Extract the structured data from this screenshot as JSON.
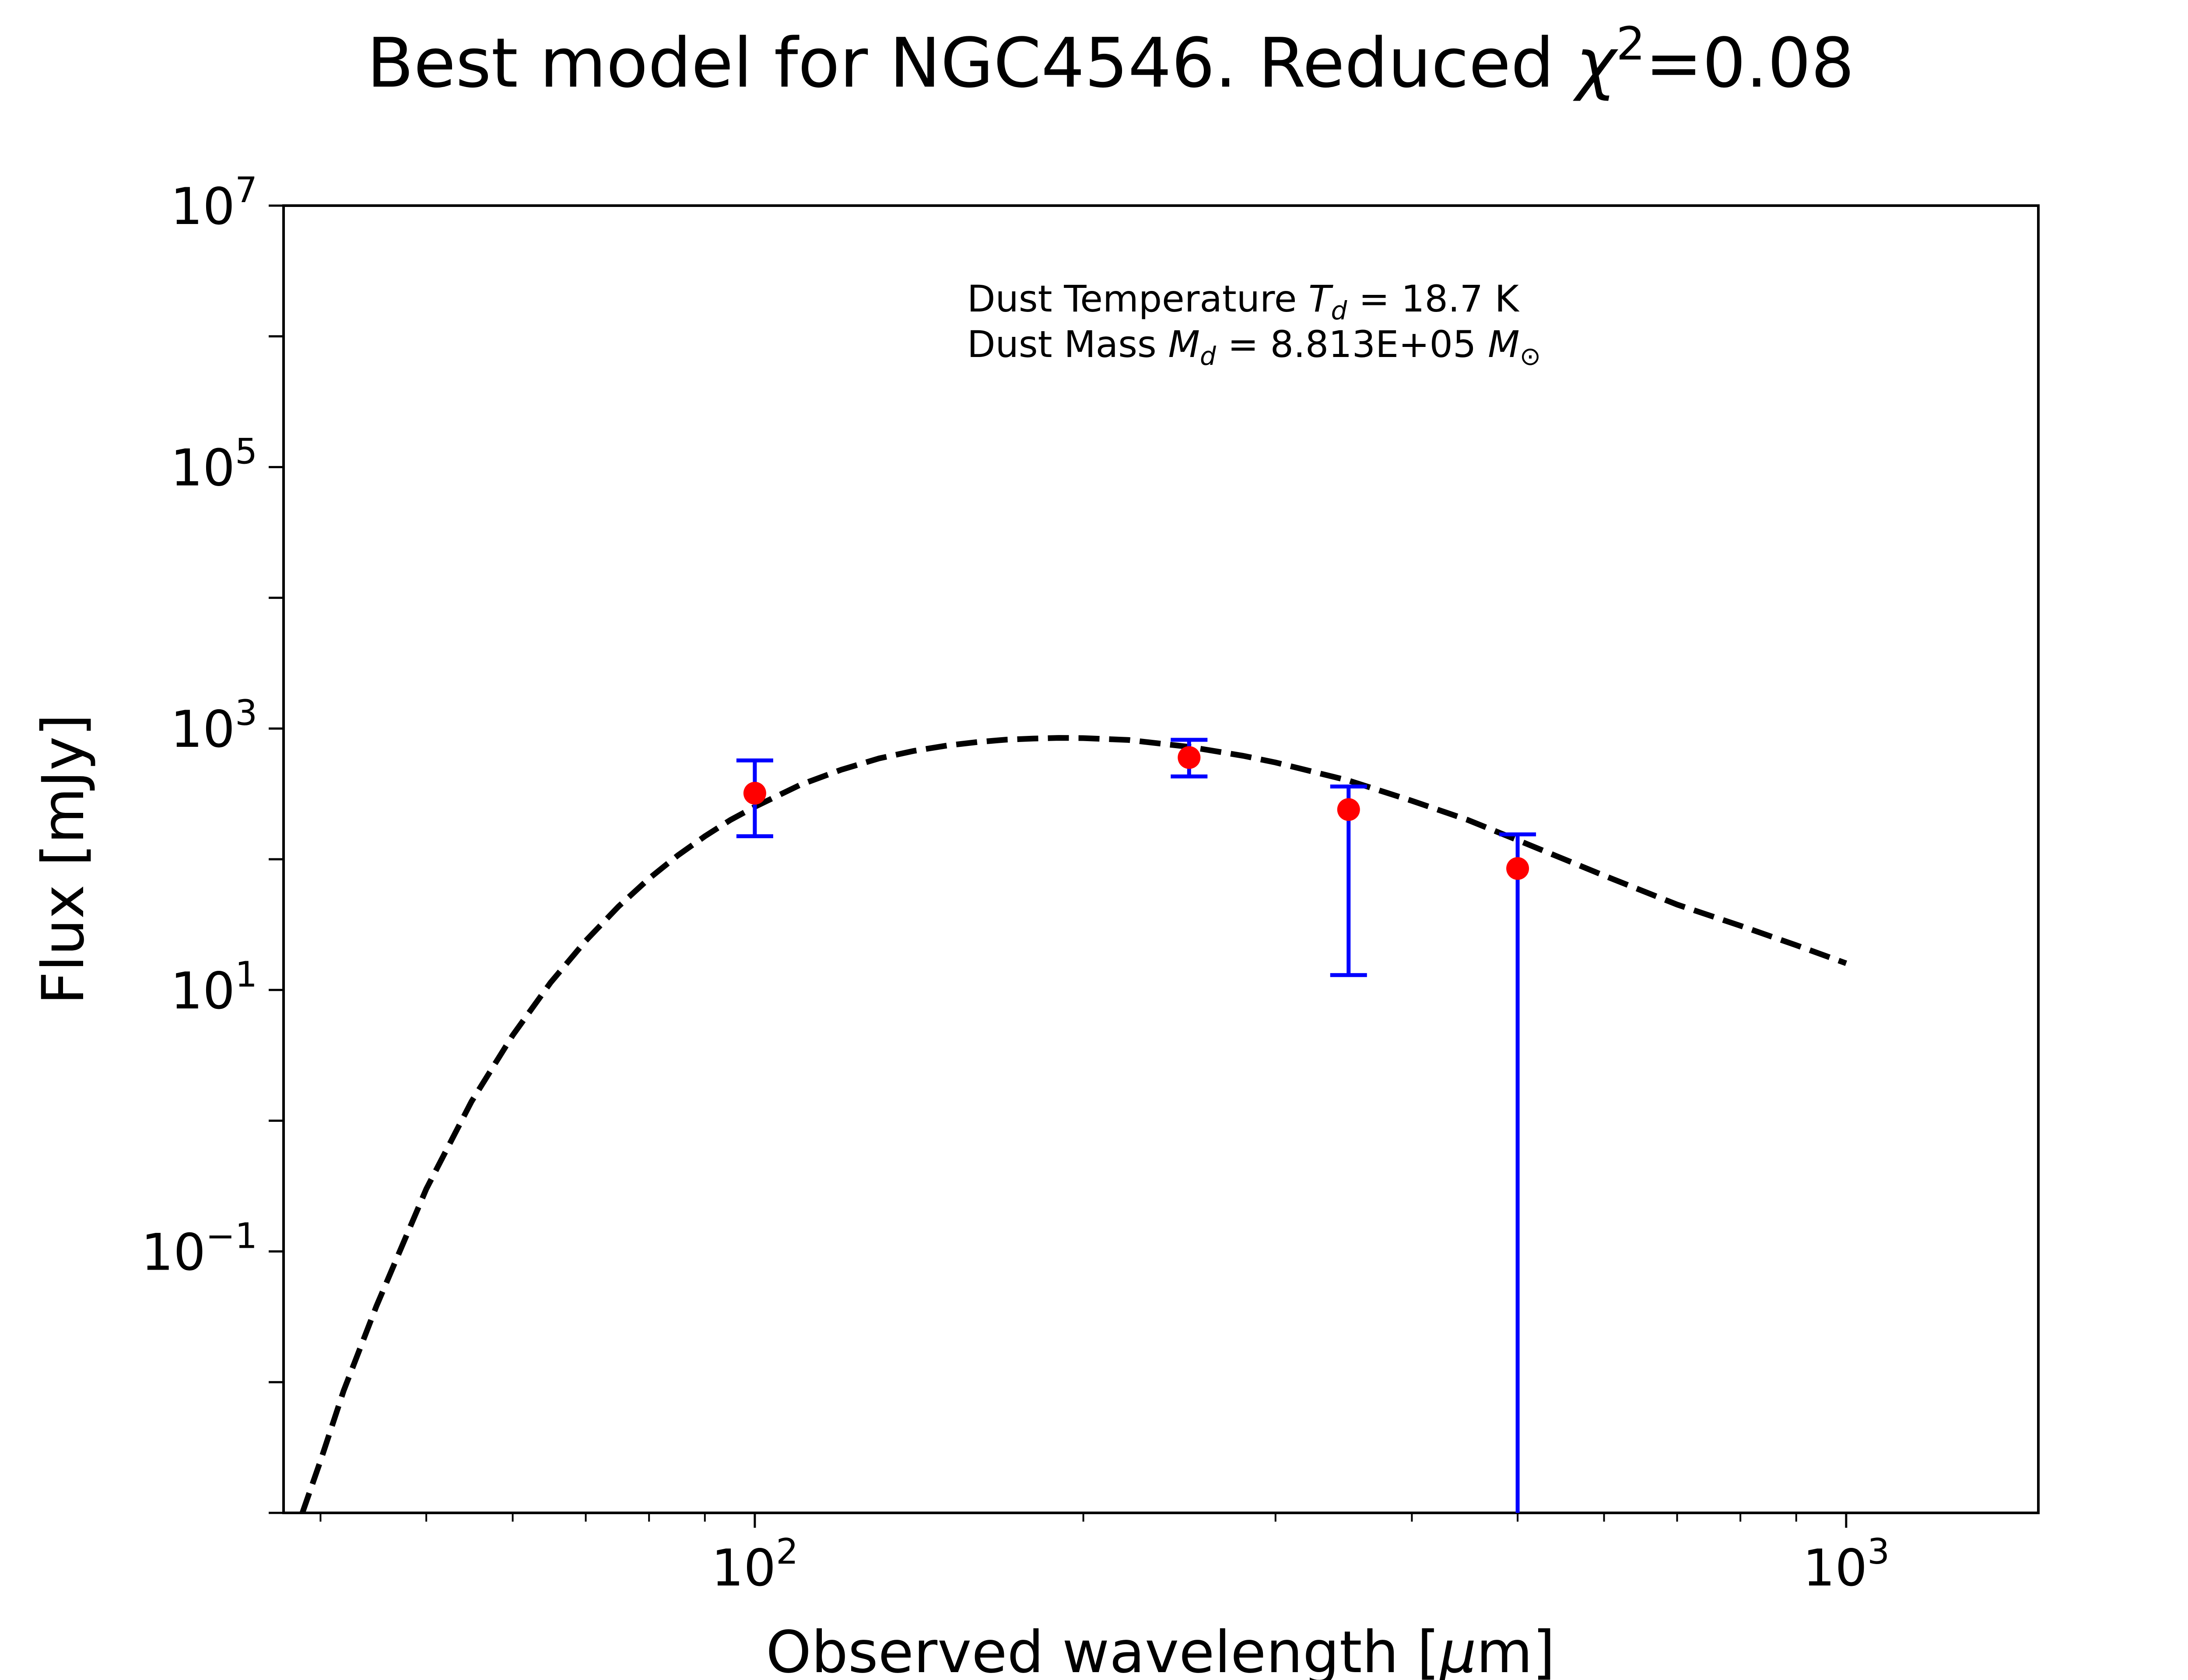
{
  "chart_data": {
    "type": "scatter",
    "title": "Best model for NGC4546. Reduced χ²=0.08",
    "title_parts": {
      "main": "Best model for NGC4546. Reduced ",
      "chi": "χ",
      "sup": "2",
      "tail": "=0.08"
    },
    "xlabel_parts": {
      "pre": "Observed wavelength [",
      "mu": "μ",
      "post": "m]"
    },
    "ylabel": "Flux [mJy]",
    "x_scale": "log",
    "y_scale": "log",
    "xlim": [
      37,
      1500
    ],
    "ylim": [
      0.001,
      10000000
    ],
    "x_major_ticks": [
      100,
      1000
    ],
    "x_tick_labels": [
      {
        "base": "10",
        "exp": "2"
      },
      {
        "base": "10",
        "exp": "3"
      }
    ],
    "y_major_ticks": [
      0.1,
      10,
      1000,
      100000,
      10000000
    ],
    "y_tick_labels": [
      {
        "base": "10",
        "exp": "−1"
      },
      {
        "base": "10",
        "exp": "1"
      },
      {
        "base": "10",
        "exp": "3"
      },
      {
        "base": "10",
        "exp": "5"
      },
      {
        "base": "10",
        "exp": "7"
      }
    ],
    "grid": false,
    "annotation": {
      "temp_pre": "Dust Temperature ",
      "temp_sym": "T",
      "temp_sub": "d",
      "temp_post": " = 18.7 K",
      "mass_pre": "Dust Mass ",
      "mass_sym": "M",
      "mass_sub": "d",
      "mass_mid": " = 8.813E+05 ",
      "mass_sun": "M",
      "mass_sun_sub": "⊙"
    },
    "observations": {
      "color": "#ff0000",
      "errorbar_color": "#0000ff",
      "points": [
        {
          "x": 100,
          "y": 320,
          "y_low": 150,
          "y_high": 570
        },
        {
          "x": 250,
          "y": 600,
          "y_low": 430,
          "y_high": 820
        },
        {
          "x": 350,
          "y": 240,
          "y_low": 13,
          "y_high": 360
        },
        {
          "x": 500,
          "y": 85,
          "y_low": 0.001,
          "y_high": 155
        }
      ]
    },
    "model": {
      "style": "dashed",
      "color": "#000000",
      "x": [
        38.5,
        40,
        42,
        45,
        50,
        55,
        60,
        65,
        70,
        75,
        80,
        85,
        90,
        95,
        100,
        110,
        120,
        130,
        140,
        150,
        160,
        170,
        180,
        190,
        200,
        220,
        250,
        280,
        300,
        350,
        400,
        450,
        500,
        600,
        700,
        800,
        900,
        1000
      ],
      "y": [
        0.001,
        0.0025,
        0.0086,
        0.038,
        0.3,
        1.4,
        4.5,
        11.4,
        23.8,
        43.5,
        71.2,
        107,
        150,
        200,
        252,
        370,
        484,
        591,
        675,
        741,
        788,
        822,
        838,
        848,
        845,
        817,
        724,
        619,
        550,
        400,
        280,
        200,
        140,
        75,
        45,
        31,
        22,
        16
      ]
    }
  }
}
